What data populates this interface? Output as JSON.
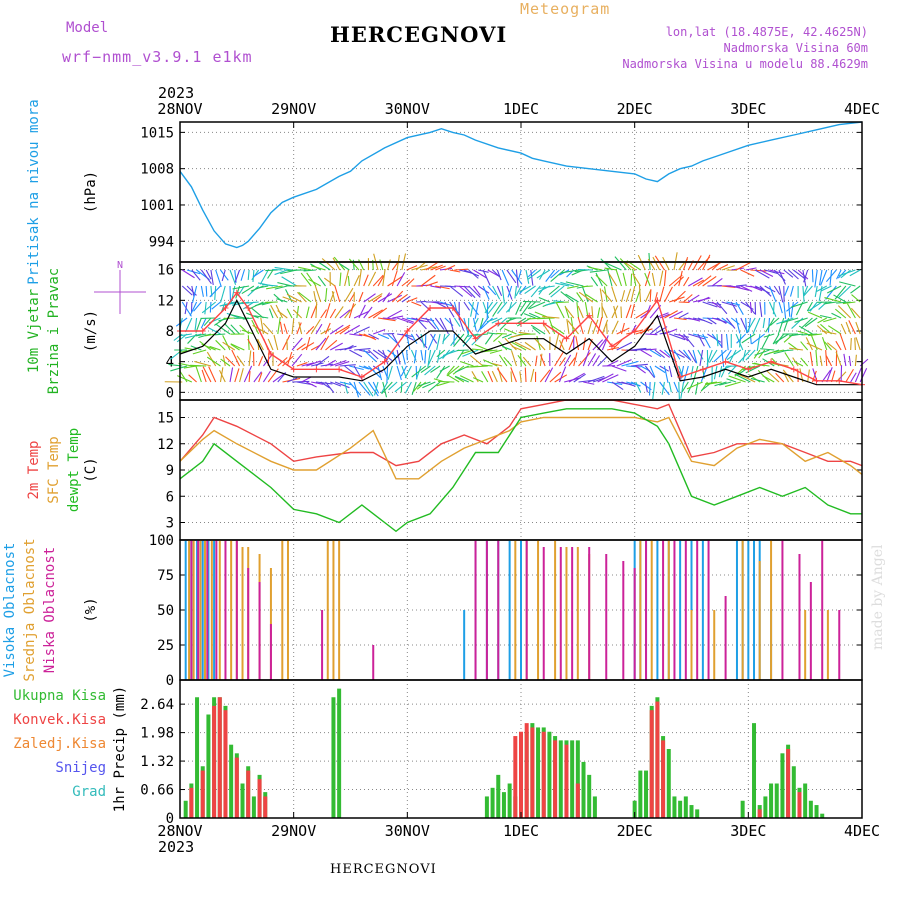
{
  "header": {
    "model_label": "Model",
    "model_name": "wrf−nmm_v3.9.1 e1km",
    "title": "HERCEGNOVI",
    "meteogram_label": "Meteogram",
    "lonlat": "lon,lat (18.4875E, 42.4625N)",
    "elevation": "Nadmorska Visina 60m",
    "model_elevation": "Nadmorska Visina u modelu 88.4629m",
    "year_top": "2023",
    "year_bottom": "2023",
    "footer_title": "HERCEGNOVI",
    "watermark": "made by Angel"
  },
  "colors": {
    "pressure": "#1e9fe6",
    "wind_label": "#22b322",
    "wind_speed": "#000000",
    "gust": "#ff4444",
    "temp_2m": "#ee4444",
    "temp_sfc": "#e0a030",
    "dewpoint": "#22bb22",
    "cloud_high": "#1e9fe6",
    "cloud_mid": "#e0a030",
    "cloud_low": "#cc2299",
    "precip_total": "#33bb33",
    "precip_conv": "#ee4444",
    "precip_frozen": "#ee8833",
    "precip_snow": "#5555ee",
    "precip_hail": "#33bbbb",
    "header_purple": "#b050d0",
    "header_orange": "#e8b060"
  },
  "chart_data": {
    "type": "line",
    "x_ticks": [
      "28NOV",
      "29NOV",
      "30NOV",
      "1DEC",
      "2DEC",
      "3DEC",
      "4DEC"
    ],
    "panels": [
      {
        "id": "pressure",
        "ylabel": [
          "Pritisak na nivou mora",
          "(hPa)"
        ],
        "yticks": [
          "994",
          "1001",
          "1008",
          "1015"
        ],
        "ylim": [
          990,
          1017
        ],
        "series": [
          {
            "key": "pressure",
            "x": [
              0,
              0.1,
              0.2,
              0.3,
              0.4,
              0.5,
              0.55,
              0.6,
              0.7,
              0.8,
              0.9,
              1.0,
              1.2,
              1.4,
              1.5,
              1.6,
              1.8,
              2.0,
              2.2,
              2.3,
              2.4,
              2.5,
              2.6,
              2.8,
              3.0,
              3.1,
              3.2,
              3.4,
              3.6,
              3.8,
              4.0,
              4.1,
              4.2,
              4.3,
              4.4,
              4.5,
              4.6,
              4.8,
              5.0,
              5.2,
              5.4,
              5.6,
              5.8,
              6.0
            ],
            "values": [
              1007.5,
              1004.5,
              1000,
              996,
              993.5,
              992.8,
              993.2,
              994,
              996.5,
              999.5,
              1001.5,
              1002.5,
              1004,
              1006.5,
              1007.5,
              1009.5,
              1012,
              1014,
              1015,
              1015.7,
              1015,
              1014.5,
              1013.5,
              1012,
              1011,
              1010,
              1009.5,
              1008.5,
              1008,
              1007.5,
              1007,
              1006,
              1005.5,
              1007,
              1008,
              1008.5,
              1009.5,
              1011,
              1012.5,
              1013.5,
              1014.5,
              1015.5,
              1016.5,
              1017
            ]
          }
        ]
      },
      {
        "id": "wind",
        "ylabel": [
          "10m Vjetar",
          "Brzina i Pravac",
          "(m/s)"
        ],
        "compass": "N",
        "yticks": [
          "0",
          "4",
          "8",
          "12",
          "16"
        ],
        "ylim": [
          -1,
          17
        ],
        "series": [
          {
            "key": "wind_speed",
            "x": [
              0,
              0.2,
              0.4,
              0.5,
              0.6,
              0.8,
              1.0,
              1.2,
              1.4,
              1.6,
              1.8,
              2.0,
              2.2,
              2.4,
              2.6,
              2.8,
              3.0,
              3.2,
              3.4,
              3.6,
              3.8,
              4.0,
              4.2,
              4.4,
              4.6,
              4.8,
              5.0,
              5.2,
              5.4,
              5.6,
              5.8,
              6.0
            ],
            "values": [
              5,
              6,
              9,
              12,
              9,
              3,
              2,
              2,
              2,
              1.5,
              3,
              6,
              8,
              8,
              5,
              6,
              7,
              7,
              5,
              7,
              4,
              6,
              10,
              1.5,
              2,
              3,
              2,
              3,
              2,
              1,
              1,
              1
            ]
          },
          {
            "key": "gust",
            "x": [
              0,
              0.2,
              0.4,
              0.5,
              0.6,
              0.8,
              1.0,
              1.2,
              1.4,
              1.6,
              1.8,
              2.0,
              2.2,
              2.4,
              2.6,
              2.8,
              3.0,
              3.2,
              3.4,
              3.6,
              3.8,
              4.0,
              4.2,
              4.4,
              4.6,
              4.8,
              5.0,
              5.2,
              5.4,
              5.6,
              5.8,
              6.0
            ],
            "values": [
              8,
              8,
              11,
              13,
              11,
              5,
              3,
              3,
              3,
              2,
              4,
              8,
              11,
              11,
              7,
              9,
              9,
              9,
              7,
              10,
              6,
              8,
              12,
              2,
              3,
              4,
              3,
              4,
              3,
              1.5,
              1.5,
              1
            ]
          }
        ]
      },
      {
        "id": "temp",
        "ylabel": [
          "2m Temp",
          "SFC Temp",
          "dewpt Temp",
          "(C)"
        ],
        "yticks": [
          "3",
          "6",
          "9",
          "12",
          "15"
        ],
        "ylim": [
          1,
          17
        ],
        "series": [
          {
            "key": "temp_2m",
            "x": [
              0,
              0.2,
              0.3,
              0.5,
              0.8,
              1.0,
              1.2,
              1.5,
              1.7,
              1.9,
              2.1,
              2.3,
              2.5,
              2.7,
              2.9,
              3.0,
              3.2,
              3.4,
              3.6,
              3.8,
              4.0,
              4.2,
              4.3,
              4.5,
              4.7,
              4.9,
              5.1,
              5.3,
              5.5,
              5.7,
              5.9,
              6.0
            ],
            "values": [
              10,
              13,
              15,
              14,
              12,
              10,
              10.5,
              11,
              11,
              9.5,
              10,
              12,
              13,
              12,
              14,
              16,
              16.5,
              17,
              17,
              17,
              16.5,
              16,
              16.5,
              10.5,
              11,
              12,
              12,
              12,
              11,
              10,
              10,
              9.5
            ]
          },
          {
            "key": "temp_sfc",
            "x": [
              0,
              0.2,
              0.3,
              0.5,
              0.8,
              1.0,
              1.2,
              1.5,
              1.7,
              1.9,
              2.1,
              2.3,
              2.5,
              2.7,
              2.9,
              3.0,
              3.2,
              3.4,
              3.6,
              3.8,
              4.0,
              4.2,
              4.3,
              4.5,
              4.7,
              4.9,
              5.1,
              5.3,
              5.5,
              5.7,
              5.9,
              6.0
            ],
            "values": [
              10,
              12.5,
              13.5,
              12,
              10,
              9,
              9,
              11.5,
              13.5,
              8,
              8,
              10,
              11.5,
              12.5,
              13.5,
              14.5,
              15,
              15,
              15,
              15,
              15,
              14.5,
              15,
              10,
              9.5,
              11.5,
              12.5,
              12,
              10,
              11,
              9.5,
              8.5
            ]
          },
          {
            "key": "dewpoint",
            "x": [
              0,
              0.2,
              0.3,
              0.5,
              0.8,
              1.0,
              1.2,
              1.4,
              1.6,
              1.8,
              1.9,
              2.0,
              2.2,
              2.4,
              2.6,
              2.8,
              3.0,
              3.2,
              3.4,
              3.6,
              3.8,
              4.0,
              4.2,
              4.3,
              4.5,
              4.7,
              4.9,
              5.1,
              5.3,
              5.5,
              5.7,
              5.9,
              6.0
            ],
            "values": [
              8,
              10,
              12,
              10,
              7,
              4.5,
              4,
              3,
              5,
              3,
              2,
              3,
              4,
              7,
              11,
              11,
              15,
              15.5,
              16,
              16,
              16,
              15.5,
              14,
              12,
              6,
              5,
              6,
              7,
              6,
              7,
              5,
              4,
              4
            ]
          }
        ]
      },
      {
        "id": "cloud",
        "ylabel": [
          "Visoka Oblacnost",
          "Srednja Oblacnost",
          "Niska Oblacnost",
          "(%)"
        ],
        "yticks": [
          "0",
          "25",
          "50",
          "75",
          "100"
        ],
        "ylim": [
          0,
          100
        ],
        "bars": [
          {
            "key": "cloud_high",
            "x": [
              0.05,
              0.1,
              0.15,
              0.2,
              0.25,
              0.3,
              2.5,
              2.6,
              2.7,
              2.8,
              2.9,
              3.0,
              4.0,
              4.05,
              4.1,
              4.2,
              4.3,
              4.4,
              4.5,
              4.6,
              4.9,
              4.95,
              5.0,
              5.05,
              5.1,
              5.2
            ],
            "values": [
              100,
              100,
              100,
              100,
              100,
              100,
              50,
              100,
              100,
              100,
              100,
              100,
              100,
              100,
              100,
              100,
              100,
              100,
              100,
              100,
              100,
              100,
              100,
              100,
              100,
              50
            ]
          },
          {
            "key": "cloud_mid",
            "x": [
              0.08,
              0.12,
              0.18,
              0.22,
              0.28,
              0.35,
              0.45,
              0.5,
              0.55,
              0.6,
              0.7,
              0.8,
              0.9,
              0.95,
              1.3,
              1.35,
              1.4,
              2.95,
              3.05,
              3.15,
              3.3,
              3.4,
              3.5,
              3.6,
              4.05,
              4.15,
              4.3,
              4.5,
              4.7,
              4.95,
              5.1,
              5.2,
              5.5,
              5.7
            ],
            "values": [
              100,
              100,
              100,
              100,
              100,
              100,
              100,
              100,
              95,
              95,
              90,
              80,
              100,
              100,
              100,
              100,
              100,
              100,
              100,
              100,
              100,
              95,
              95,
              90,
              100,
              100,
              100,
              50,
              50,
              100,
              85,
              100,
              50,
              50
            ]
          },
          {
            "key": "cloud_low",
            "x": [
              0.1,
              0.16,
              0.24,
              0.32,
              0.4,
              0.5,
              0.6,
              0.7,
              0.8,
              1.25,
              1.7,
              2.6,
              2.7,
              2.8,
              3.05,
              3.2,
              3.35,
              3.45,
              3.6,
              3.75,
              3.9,
              4.0,
              4.1,
              4.25,
              4.35,
              4.45,
              4.55,
              4.65,
              4.8,
              5.3,
              5.45,
              5.55,
              5.65,
              5.8
            ],
            "values": [
              100,
              100,
              100,
              100,
              100,
              100,
              80,
              70,
              40,
              50,
              25,
              100,
              100,
              100,
              100,
              95,
              95,
              95,
              95,
              90,
              85,
              80,
              100,
              100,
              100,
              100,
              100,
              100,
              60,
              100,
              90,
              70,
              100,
              50
            ]
          }
        ]
      },
      {
        "id": "precip",
        "ylabel": [
          "1hr Precip (mm)"
        ],
        "legend": [
          "Ukupna Kisa",
          "Konvek.Kisa",
          "Zaledj.Kisa",
          "Snijeg",
          "Grad"
        ],
        "yticks": [
          "0",
          "0.66",
          "1.32",
          "1.98",
          "2.64"
        ],
        "ylim": [
          0,
          3.2
        ],
        "bars": [
          {
            "key": "precip_total",
            "x": [
              0.05,
              0.1,
              0.15,
              0.2,
              0.25,
              0.3,
              0.35,
              0.4,
              0.45,
              0.5,
              0.55,
              0.6,
              0.65,
              0.7,
              0.75,
              1.35,
              1.4,
              2.7,
              2.75,
              2.8,
              2.85,
              2.9,
              2.95,
              3.0,
              3.05,
              3.1,
              3.15,
              3.2,
              3.25,
              3.3,
              3.35,
              3.4,
              3.45,
              3.5,
              3.55,
              3.6,
              3.65,
              4.0,
              4.05,
              4.1,
              4.15,
              4.2,
              4.25,
              4.3,
              4.35,
              4.4,
              4.45,
              4.5,
              4.55,
              4.95,
              5.05,
              5.1,
              5.15,
              5.2,
              5.25,
              5.3,
              5.35,
              5.4,
              5.45,
              5.5,
              5.55,
              5.6,
              5.65
            ],
            "values": [
              0.4,
              0.8,
              2.8,
              1.2,
              2.4,
              2.8,
              2.8,
              2.6,
              1.7,
              1.5,
              0.8,
              1.2,
              0.5,
              1.0,
              0.6,
              2.8,
              3.0,
              0.5,
              0.7,
              1.0,
              0.6,
              0.8,
              0.5,
              1.9,
              2.0,
              2.2,
              2.1,
              2.1,
              2.0,
              1.9,
              1.8,
              1.8,
              1.8,
              1.8,
              1.3,
              1.0,
              0.5,
              0.4,
              1.1,
              1.1,
              2.6,
              2.8,
              1.9,
              1.6,
              0.5,
              0.4,
              0.5,
              0.3,
              0.2,
              0.4,
              2.2,
              0.3,
              0.5,
              0.8,
              0.8,
              1.5,
              1.7,
              1.2,
              0.7,
              0.8,
              0.4,
              0.3,
              0.1
            ]
          },
          {
            "key": "precip_conv",
            "x": [
              0.1,
              0.2,
              0.3,
              0.35,
              0.4,
              0.5,
              0.6,
              0.7,
              0.75,
              2.95,
              3.0,
              3.05,
              3.1,
              3.2,
              3.3,
              3.4,
              3.5,
              4.15,
              4.2,
              4.25,
              5.1,
              5.35,
              5.45
            ],
            "values": [
              0.7,
              1.1,
              2.6,
              2.8,
              2.5,
              1.4,
              1.1,
              0.9,
              0.5,
              1.9,
              2.0,
              2.2,
              2.1,
              2.0,
              1.8,
              1.7,
              0.8,
              2.5,
              2.7,
              1.8,
              0.2,
              1.6,
              0.6
            ]
          }
        ]
      }
    ]
  }
}
